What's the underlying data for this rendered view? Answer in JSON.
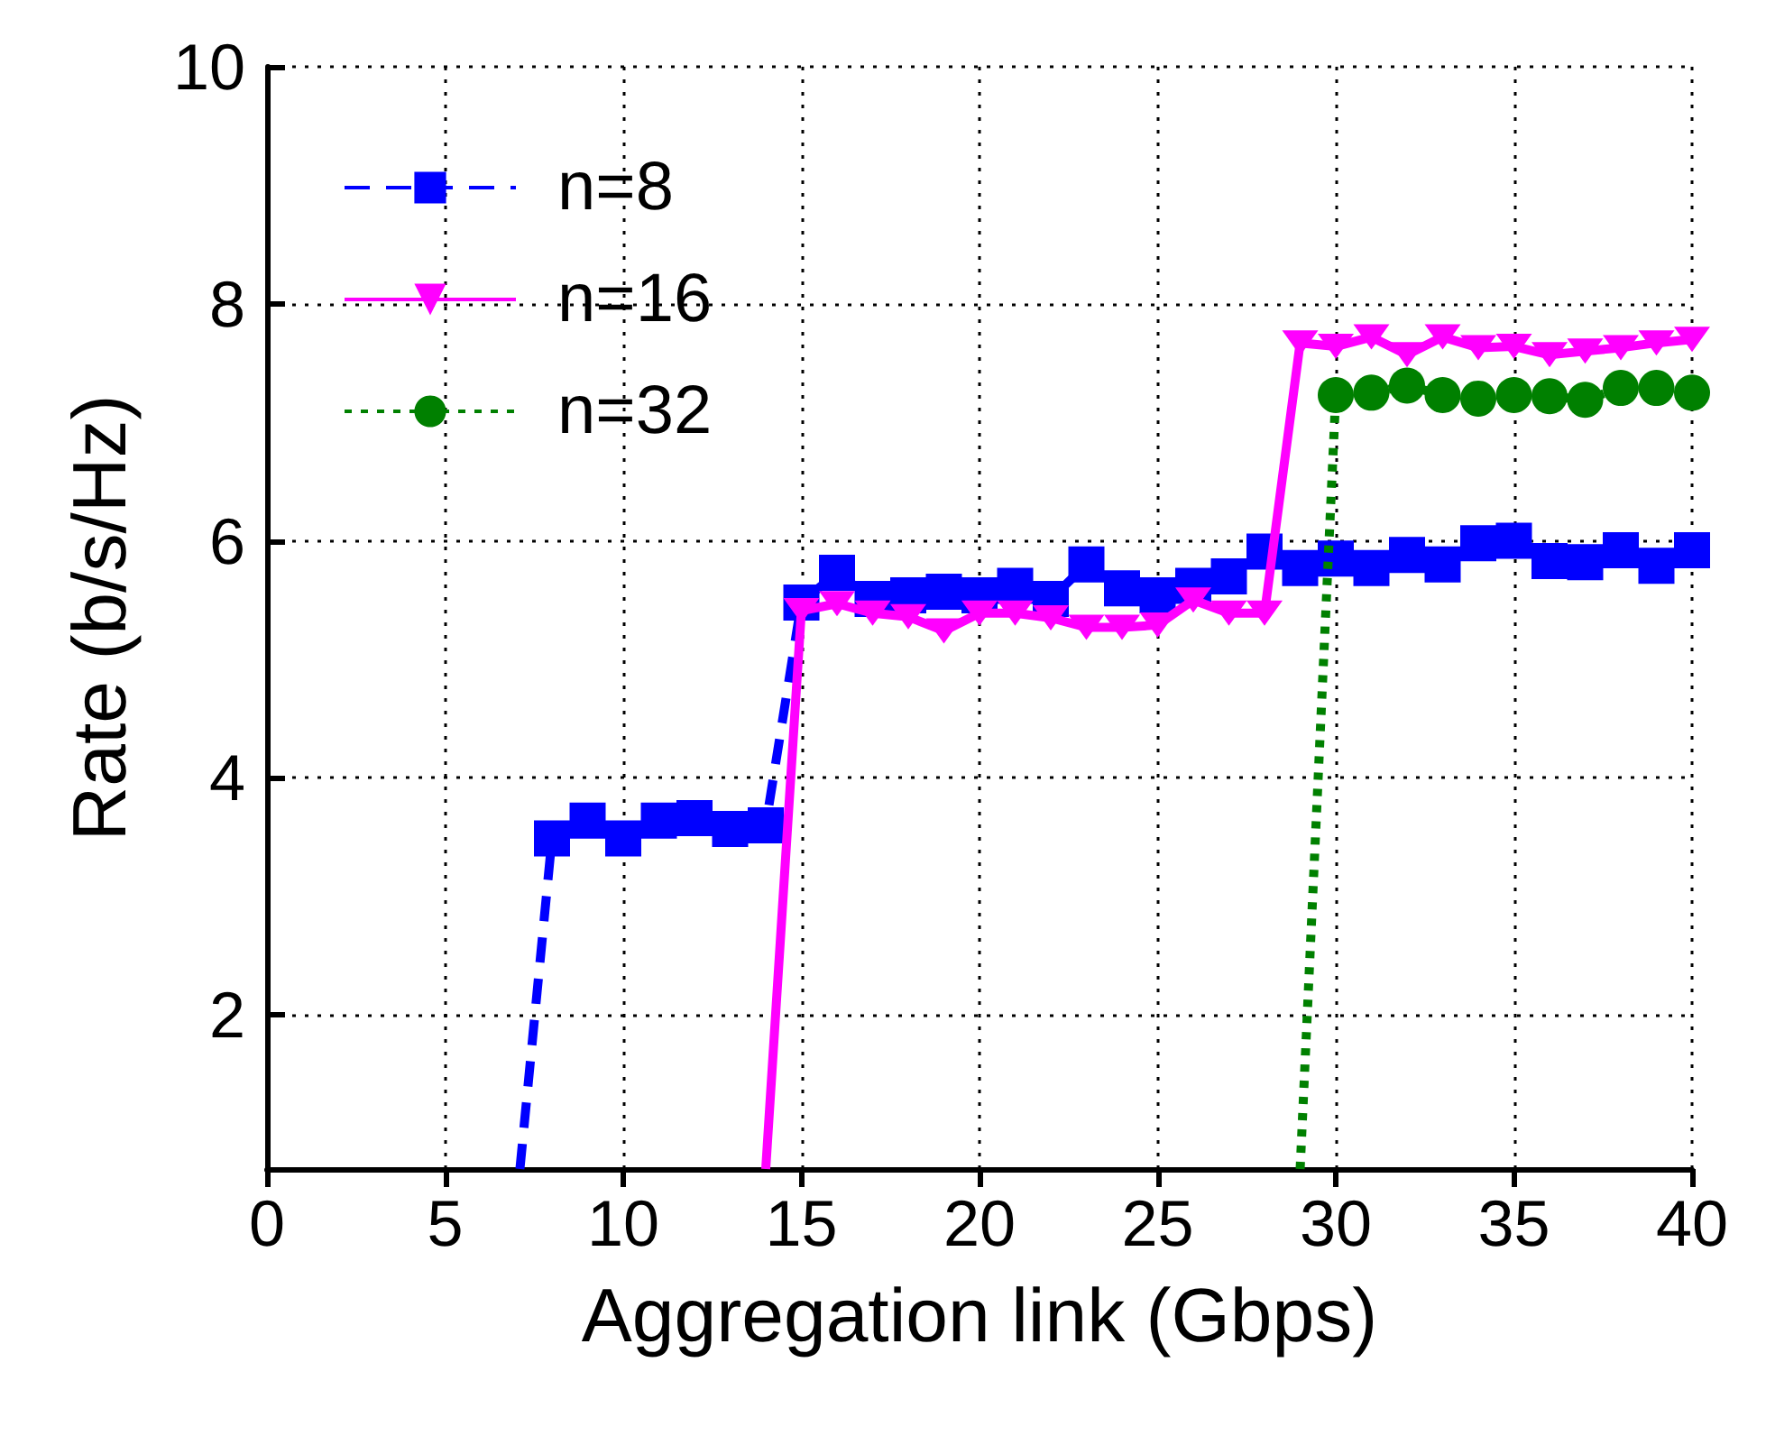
{
  "chart_data": {
    "type": "line",
    "xlabel": "Aggregation link (Gbps)",
    "ylabel": "Rate (b/s/Hz)",
    "xlim": [
      0,
      40
    ],
    "xticks": [
      0,
      5,
      10,
      15,
      20,
      25,
      30,
      35,
      40
    ],
    "ylim": [
      0.7,
      10
    ],
    "yticks": [
      2,
      4,
      6,
      8,
      10
    ],
    "grid": true,
    "legend": "top left",
    "series": [
      {
        "name": "n=8",
        "color": "#0000ff",
        "marker": "square",
        "line_style": "dashed",
        "x": [
          7.1,
          8,
          9,
          10,
          11,
          12,
          13,
          14,
          15,
          16,
          17,
          18,
          19,
          20,
          21,
          22,
          23,
          24,
          25,
          26,
          27,
          28,
          29,
          30,
          31,
          32,
          33,
          34,
          35,
          36,
          37,
          38,
          39,
          40
        ],
        "values": [
          0.7,
          3.49,
          3.64,
          3.49,
          3.64,
          3.66,
          3.57,
          3.6,
          5.48,
          5.73,
          5.51,
          5.54,
          5.57,
          5.54,
          5.62,
          5.51,
          5.8,
          5.6,
          5.54,
          5.62,
          5.7,
          5.91,
          5.77,
          5.85,
          5.77,
          5.88,
          5.8,
          5.98,
          6.0,
          5.83,
          5.82,
          5.92,
          5.79,
          5.92
        ]
      },
      {
        "name": "n=16",
        "color": "#ff00ff",
        "marker": "triangle",
        "line_style": "solid",
        "x": [
          14,
          15,
          16,
          17,
          18,
          19,
          20,
          21,
          22,
          23,
          24,
          25,
          26,
          27,
          28,
          29,
          30,
          31,
          32,
          33,
          34,
          35,
          36,
          37,
          38,
          39,
          40
        ],
        "values": [
          0.7,
          5.41,
          5.47,
          5.39,
          5.36,
          5.24,
          5.39,
          5.39,
          5.35,
          5.27,
          5.27,
          5.29,
          5.5,
          5.39,
          5.39,
          7.67,
          7.64,
          7.72,
          7.57,
          7.72,
          7.63,
          7.64,
          7.57,
          7.6,
          7.63,
          7.67,
          7.7
        ]
      },
      {
        "name": "n=32",
        "color": "#008000",
        "marker": "circle",
        "line_style": "dotted",
        "x": [
          29,
          30,
          31,
          32,
          33,
          34,
          35,
          36,
          37,
          38,
          39,
          40
        ],
        "values": [
          0.7,
          7.23,
          7.25,
          7.31,
          7.23,
          7.2,
          7.23,
          7.22,
          7.19,
          7.29,
          7.29,
          7.25
        ]
      }
    ]
  }
}
